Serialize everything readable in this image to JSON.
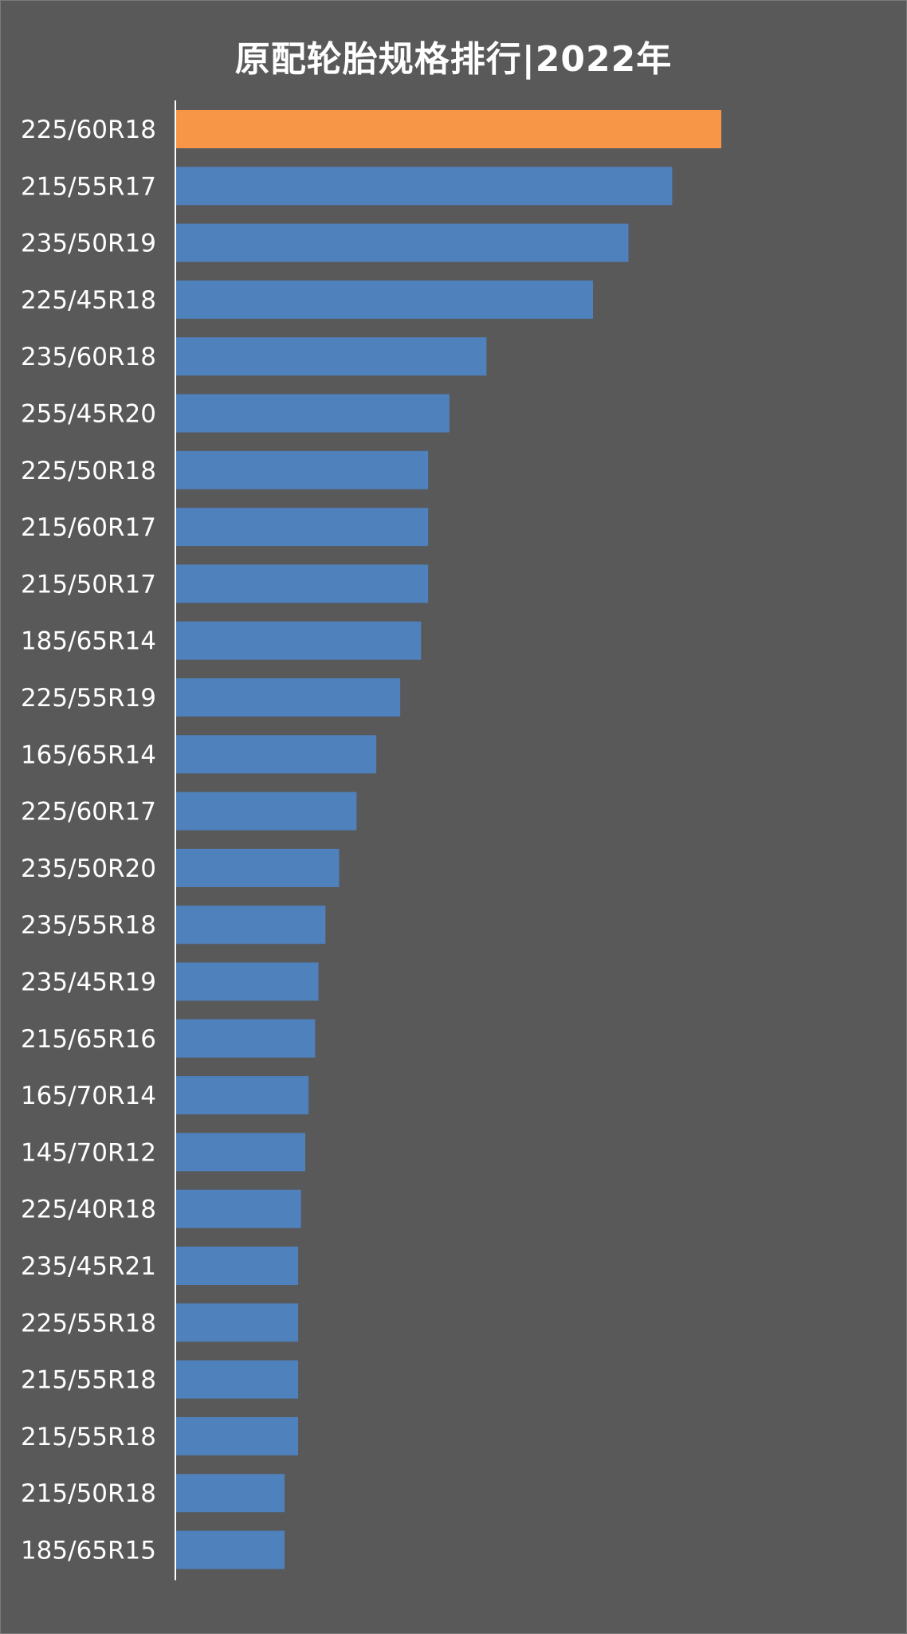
{
  "chart_data": {
    "type": "bar",
    "orientation": "horizontal",
    "title": "原配轮胎规格排行|2022年",
    "xlabel": "",
    "ylabel": "",
    "grid": false,
    "legend": "none",
    "categories": [
      "225/60R18",
      "215/55R17",
      "235/50R19",
      "225/45R18",
      "235/60R18",
      "255/45R20",
      "225/50R18",
      "215/60R17",
      "215/50R17",
      "185/65R14",
      "225/55R19",
      "165/65R14",
      "225/60R17",
      "235/50R20",
      "235/55R18",
      "235/45R19",
      "215/65R16",
      "165/70R14",
      "145/70R12",
      "225/40R18",
      "235/45R21",
      "225/55R18",
      "215/55R18",
      "215/55R18",
      "215/50R18",
      "185/65R15"
    ],
    "values": [
      100,
      91.0,
      83.0,
      76.5,
      57.0,
      50.2,
      46.3,
      46.3,
      46.3,
      45.0,
      41.2,
      36.8,
      33.2,
      30.0,
      27.5,
      26.2,
      25.6,
      24.4,
      23.8,
      23.0,
      22.5,
      22.5,
      22.5,
      22.5,
      20.0,
      20.0
    ],
    "xlim": [
      0,
      100
    ],
    "colors": {
      "highlight": "#f79646",
      "default": "#4f81bd",
      "background": "#595959",
      "axis": "#ffffff",
      "text": "#ffffff"
    },
    "highlight_index": 0
  }
}
